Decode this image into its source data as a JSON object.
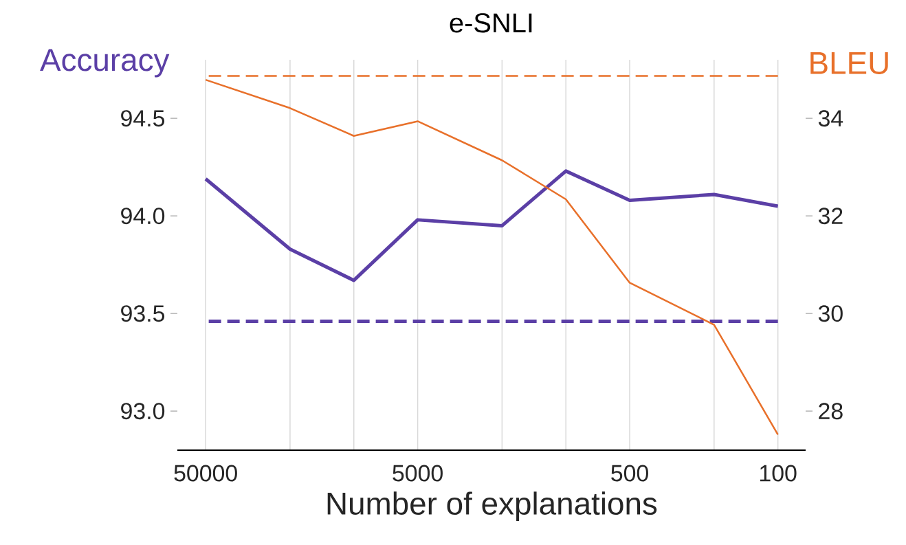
{
  "chart_data": {
    "type": "line",
    "title": "e-SNLI",
    "xlabel": "Number of explanations",
    "ylabel": "Accuracy",
    "y2label": "BLEU",
    "x": [
      50000,
      20000,
      10000,
      5000,
      2000,
      1000,
      500,
      200,
      100
    ],
    "log": "x",
    "xlim": [
      68000,
      74
    ],
    "xticks": [
      50000,
      {
        "value": 20000,
        "label": null
      },
      {
        "value": 10000,
        "label": null
      },
      5000,
      {
        "value": 2000,
        "label": null
      },
      {
        "value": 1000,
        "label": null
      },
      500,
      {
        "value": 200,
        "label": null
      },
      100
    ],
    "ylim": [
      92.8,
      94.8
    ],
    "yticks": [
      {
        "value": 93,
        "label": "93.0"
      },
      {
        "value": 93.5,
        "label": "93.5"
      },
      {
        "value": 94,
        "label": "94.0"
      },
      {
        "value": 94.5,
        "label": "94.5"
      }
    ],
    "y2lim": [
      27.2,
      35.2
    ],
    "y2ticks": [
      28,
      30,
      32,
      34
    ],
    "series": [
      {
        "color": "#5b3fa6",
        "values": [
          94.19,
          93.83,
          93.67,
          93.98,
          93.95,
          94.23,
          94.08,
          94.11,
          94.05
        ]
      },
      {
        "color": "#e8702a",
        "axis": "y2",
        "values": [
          34.79,
          34.21,
          33.64,
          33.94,
          33.14,
          32.34,
          30.63,
          29.77,
          27.52
        ]
      }
    ],
    "ref_lines": [
      {
        "axis": "y",
        "value": 93.46,
        "color": "#5b3fa6",
        "line_style": "dashed"
      },
      {
        "axis": "y2",
        "value": 34.87,
        "color": "#e8702a",
        "line_style": "dashed"
      }
    ],
    "grid": "x",
    "marker": "none",
    "line_style": "solid"
  }
}
